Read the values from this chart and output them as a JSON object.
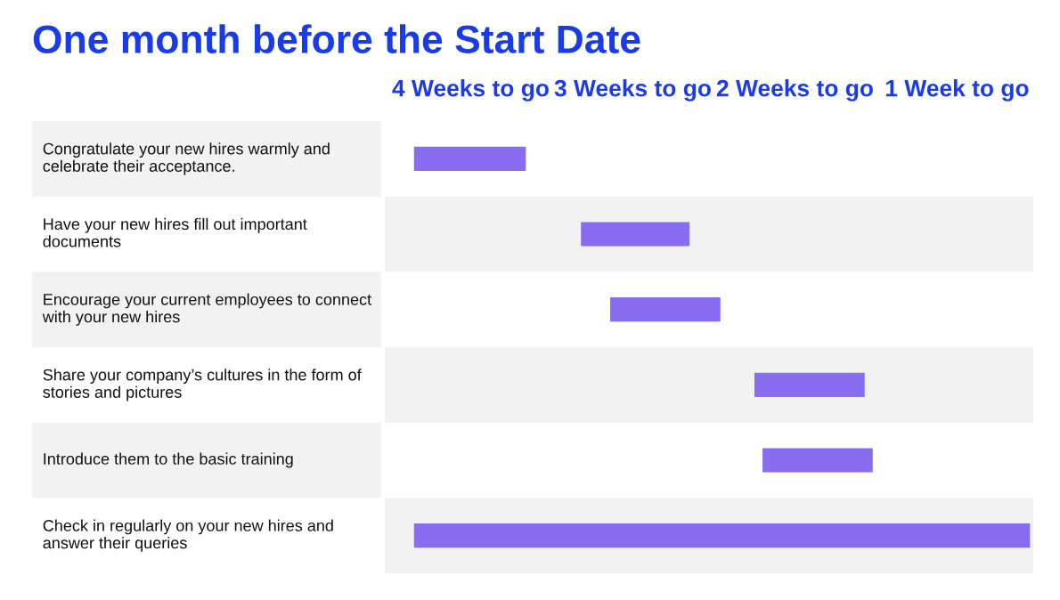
{
  "chart_data": {
    "type": "bar",
    "orientation": "horizontal",
    "title": "One month before the Start Date",
    "categories": [
      "Congratulate your new hires warmly and celebrate their acceptance.",
      "Have your new hires fill out important documents",
      "Encourage your current employees to connect with your new hires",
      "Share your company’s cultures in the form of stories and pictures",
      "Introduce them to the basic training",
      "Check in regularly on your new hires and answer their queries"
    ],
    "base": [
      4.35,
      3.32,
      3.14,
      2.25,
      2.2,
      4.35
    ],
    "values": [
      -0.69,
      -0.67,
      -0.68,
      -0.68,
      -0.68,
      -3.8
    ],
    "color": "#8a6cf0",
    "xlim": [
      4.53,
      0.53
    ],
    "xticks": [
      {
        "value": 4,
        "label": "4 Weeks to go"
      },
      {
        "value": 3,
        "label": "3 Weeks to go"
      },
      {
        "value": 2,
        "label": "2 Weeks to go"
      },
      {
        "value": 1,
        "label": "1 Week to go"
      }
    ],
    "grid": false,
    "legend": false
  }
}
